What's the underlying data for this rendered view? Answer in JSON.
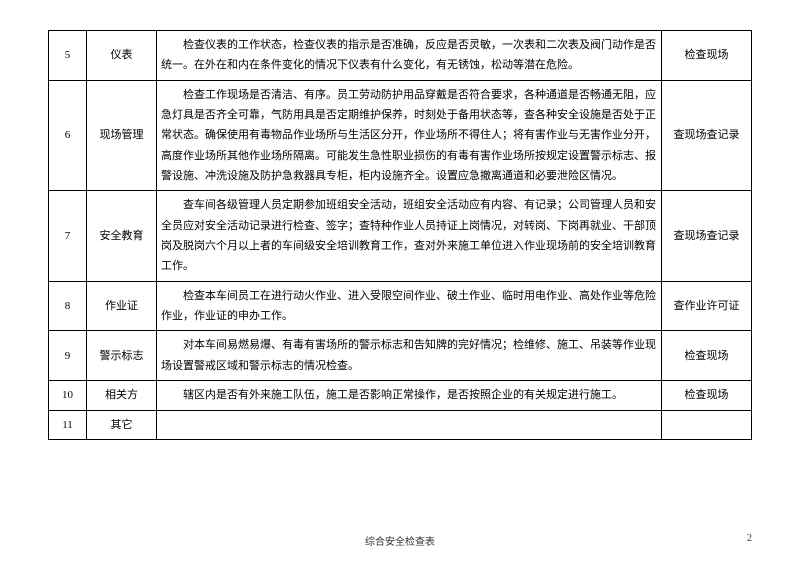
{
  "table": {
    "rows": [
      {
        "num": "5",
        "category": "仪表",
        "description": "检查仪表的工作状态，检查仪表的指示是否准确，反应是否灵敏，一次表和二次表及阀门动作是否统一。在外在和内在条件变化的情况下仪表有什么变化，有无锈蚀，松动等潜在危险。",
        "method": "检查现场"
      },
      {
        "num": "6",
        "category": "现场管理",
        "description": "检查工作现场是否清洁、有序。员工劳动防护用品穿戴是否符合要求，各种通道是否畅通无阻，应急灯具是否齐全可靠，气防用具是否定期维护保养，时刻处于备用状态等，查各种安全设施是否处于正常状态。确保使用有毒物品作业场所与生活区分开，作业场所不得住人；将有害作业与无害作业分开，高度作业场所其他作业场所隔离。可能发生急性职业损伤的有毒有害作业场所按规定设置警示标志、报警设施、冲洗设施及防护急救器具专柜，柜内设施齐全。设置应急撤离通道和必要泄险区情况。",
        "method": "查现场查记录"
      },
      {
        "num": "7",
        "category": "安全教育",
        "description": "查车间各级管理人员定期参加班组安全活动，班组安全活动应有内容、有记录；公司管理人员和安全员应对安全活动记录进行检查、签字；查特种作业人员持证上岗情况，对转岗、下岗再就业、干部顶岗及脱岗六个月以上者的车间级安全培训教育工作，查对外来施工单位进入作业现场前的安全培训教育工作。",
        "method": "查现场查记录"
      },
      {
        "num": "8",
        "category": "作业证",
        "description": "检查本车间员工在进行动火作业、进入受限空间作业、破土作业、临时用电作业、高处作业等危险作业，作业证的申办工作。",
        "method": "查作业许可证"
      },
      {
        "num": "9",
        "category": "警示标志",
        "description": "对本车间易燃易爆、有毒有害场所的警示标志和告知牌的完好情况；检维修、施工、吊装等作业现场设置警戒区域和警示标志的情况检查。",
        "method": "检查现场"
      },
      {
        "num": "10",
        "category": "相关方",
        "description": "辖区内是否有外来施工队伍，施工是否影响正常操作，是否按照企业的有关规定进行施工。",
        "method": "检查现场"
      },
      {
        "num": "11",
        "category": "其它",
        "description": "",
        "method": ""
      }
    ]
  },
  "footer": {
    "title": "综合安全检查表",
    "page": "2"
  }
}
